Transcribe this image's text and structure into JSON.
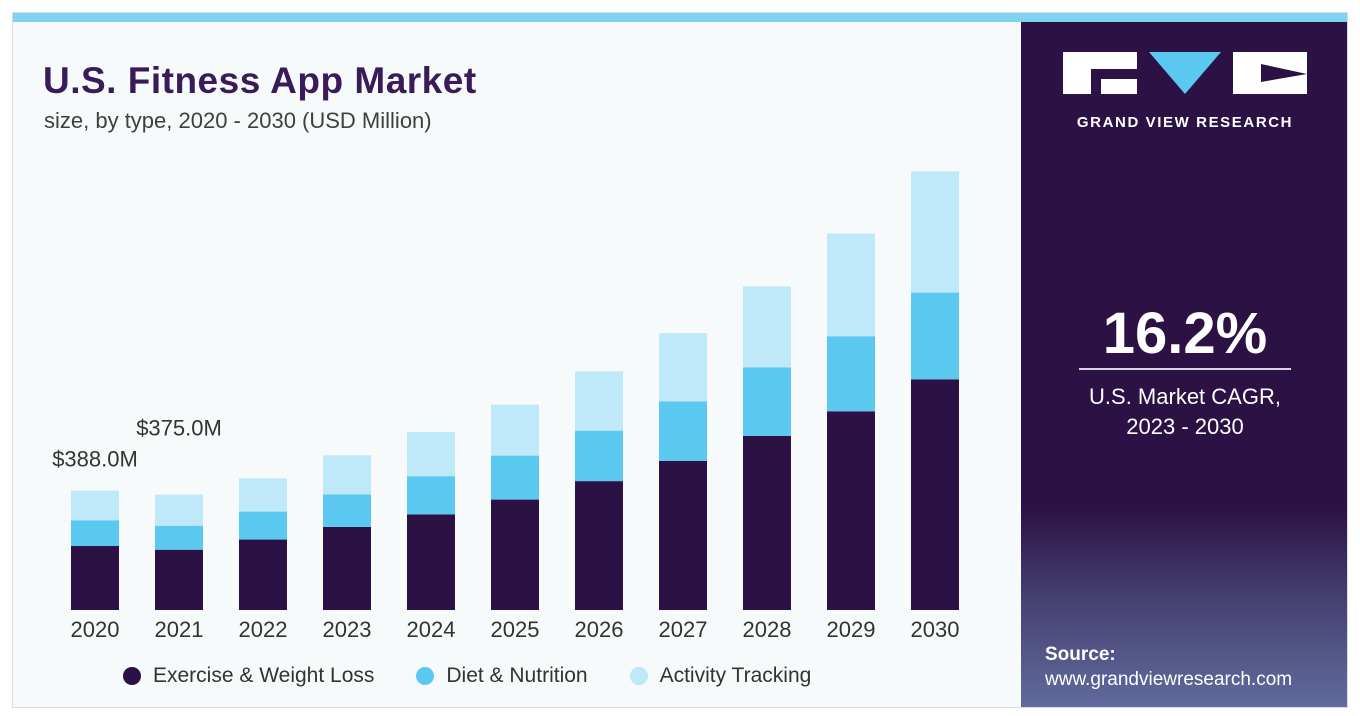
{
  "chart_title": "U.S. Fitness App Market",
  "chart_subtitle": "size, by type, 2020 - 2030 (USD Million)",
  "colors": {
    "exercise": "#2c1244",
    "diet": "#5bc8ef",
    "activity": "#bfe8f8",
    "panel": "#2c1244"
  },
  "chart_data": {
    "type": "bar",
    "stacked": true,
    "title": "U.S. Fitness App Market",
    "subtitle": "size, by type, 2020 - 2030 (USD Million)",
    "categories": [
      "2020",
      "2021",
      "2022",
      "2023",
      "2024",
      "2025",
      "2026",
      "2027",
      "2028",
      "2029",
      "2030"
    ],
    "series": [
      {
        "name": "Exercise & Weight Loss",
        "values": [
          208,
          196,
          229,
          270,
          311,
          359,
          419,
          485,
          566,
          646,
          750
        ]
      },
      {
        "name": "Diet & Nutrition",
        "values": [
          83,
          78,
          91,
          106,
          124,
          143,
          164,
          193,
          223,
          244,
          282
        ]
      },
      {
        "name": "Activity Tracking",
        "values": [
          97,
          101,
          108,
          127,
          144,
          166,
          193,
          222,
          263,
          334,
          394
        ]
      }
    ],
    "annotations": [
      {
        "category": "2020",
        "text": "$388.0M"
      },
      {
        "category": "2021",
        "text": "$375.0M"
      }
    ],
    "legend_position": "bottom",
    "ylim": [
      0,
      1450
    ],
    "grid": false
  },
  "sidebar": {
    "brand": "GRAND VIEW RESEARCH",
    "cagr_value": "16.2%",
    "cagr_label_line1": "U.S. Market CAGR,",
    "cagr_label_line2": "2023 - 2030",
    "source_label": "Source:",
    "source_url": "www.grandviewresearch.com"
  }
}
